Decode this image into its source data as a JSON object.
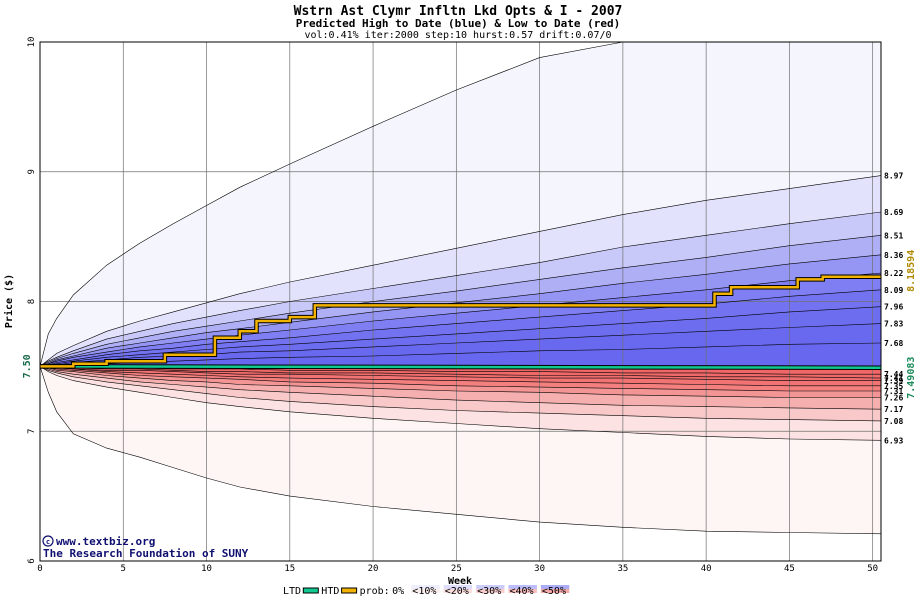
{
  "chart_data": {
    "type": "area",
    "title": "Wstrn Ast Clymr Infltn Lkd Opts & I - 2007",
    "subtitle": "Predicted High to Date (blue) &  Low to Date (red)",
    "params": "vol:0.41% iter:2000 step:10 hurst:0.57 drift:0.07/0",
    "xlabel": "Week",
    "ylabel": "Price ($)",
    "xlim": [
      0,
      50.5
    ],
    "ylim": [
      6,
      10
    ],
    "xticks": [
      0,
      5,
      10,
      15,
      20,
      25,
      30,
      35,
      40,
      45,
      50
    ],
    "yticks": [
      6,
      7,
      8,
      9,
      10
    ],
    "grid": true,
    "start_price": 7.5,
    "start_label": "7.50",
    "x": [
      0,
      0.5,
      1,
      2,
      4,
      6,
      8,
      10,
      12,
      15,
      20,
      25,
      30,
      35,
      40,
      45,
      50.5
    ],
    "high_bands": [
      {
        "name": "0%",
        "end_label": "",
        "values": [
          7.5,
          7.75,
          7.87,
          8.05,
          8.28,
          8.45,
          8.6,
          8.74,
          8.88,
          9.06,
          9.35,
          9.63,
          9.88,
          10.02,
          10.1,
          10.15,
          10.2
        ]
      },
      {
        "name": "10%",
        "end_label": "8.97",
        "values": [
          7.5,
          7.55,
          7.6,
          7.66,
          7.77,
          7.85,
          7.92,
          7.99,
          8.06,
          8.15,
          8.28,
          8.41,
          8.54,
          8.67,
          8.78,
          8.87,
          8.97
        ]
      },
      {
        "name": "20%",
        "end_label": "8.69",
        "values": [
          7.5,
          7.54,
          7.57,
          7.62,
          7.71,
          7.77,
          7.83,
          7.88,
          7.93,
          8.0,
          8.1,
          8.2,
          8.3,
          8.42,
          8.51,
          8.6,
          8.69
        ]
      },
      {
        "name": "30%",
        "end_label": "8.51",
        "values": [
          7.5,
          7.53,
          7.56,
          7.6,
          7.67,
          7.72,
          7.77,
          7.81,
          7.85,
          7.91,
          8.0,
          8.08,
          8.17,
          8.26,
          8.34,
          8.43,
          8.51
        ]
      },
      {
        "name": "40%",
        "end_label": "8.36",
        "values": [
          7.5,
          7.52,
          7.55,
          7.58,
          7.64,
          7.68,
          7.72,
          7.76,
          7.79,
          7.84,
          7.92,
          7.99,
          8.06,
          8.14,
          8.21,
          8.29,
          8.36
        ]
      },
      {
        "name": "50%",
        "end_label": "8.22",
        "values": [
          7.5,
          7.52,
          7.54,
          7.57,
          7.61,
          7.65,
          7.68,
          7.71,
          7.74,
          7.78,
          7.85,
          7.91,
          7.97,
          8.03,
          8.09,
          8.16,
          8.22
        ]
      },
      {
        "name": "60%",
        "end_label": "8.09",
        "values": [
          7.5,
          7.51,
          7.53,
          7.55,
          7.59,
          7.62,
          7.64,
          7.67,
          7.69,
          7.72,
          7.78,
          7.83,
          7.88,
          7.93,
          7.98,
          8.04,
          8.09
        ]
      },
      {
        "name": "70%",
        "end_label": "7.96",
        "values": [
          7.5,
          7.51,
          7.52,
          7.54,
          7.57,
          7.59,
          7.61,
          7.63,
          7.65,
          7.67,
          7.71,
          7.75,
          7.79,
          7.83,
          7.87,
          7.92,
          7.96
        ]
      },
      {
        "name": "80%",
        "end_label": "7.83",
        "values": [
          7.5,
          7.51,
          7.51,
          7.53,
          7.55,
          7.57,
          7.58,
          7.59,
          7.61,
          7.62,
          7.65,
          7.68,
          7.71,
          7.74,
          7.77,
          7.8,
          7.83
        ]
      },
      {
        "name": "90%",
        "end_label": "7.68",
        "values": [
          7.5,
          7.5,
          7.51,
          7.51,
          7.52,
          7.53,
          7.54,
          7.55,
          7.56,
          7.57,
          7.58,
          7.6,
          7.62,
          7.63,
          7.65,
          7.67,
          7.68
        ]
      }
    ],
    "low_bands": [
      {
        "name": "0%",
        "end_label": "",
        "values": [
          7.5,
          7.3,
          7.15,
          6.98,
          6.87,
          6.8,
          6.72,
          6.64,
          6.57,
          6.5,
          6.42,
          6.36,
          6.3,
          6.26,
          6.23,
          6.22,
          6.21
        ]
      },
      {
        "name": "10%",
        "end_label": "6.93",
        "values": [
          7.5,
          7.46,
          7.43,
          7.39,
          7.34,
          7.3,
          7.26,
          7.22,
          7.19,
          7.15,
          7.1,
          7.06,
          7.02,
          6.99,
          6.96,
          6.94,
          6.93
        ]
      },
      {
        "name": "20%",
        "end_label": "7.08",
        "values": [
          7.5,
          7.47,
          7.45,
          7.42,
          7.38,
          7.35,
          7.32,
          7.29,
          7.26,
          7.23,
          7.19,
          7.16,
          7.14,
          7.12,
          7.1,
          7.09,
          7.08
        ]
      },
      {
        "name": "30%",
        "end_label": "7.17",
        "values": [
          7.5,
          7.48,
          7.46,
          7.44,
          7.41,
          7.38,
          7.36,
          7.34,
          7.32,
          7.3,
          7.27,
          7.24,
          7.22,
          7.2,
          7.19,
          7.18,
          7.17
        ]
      },
      {
        "name": "40%",
        "end_label": "7.26",
        "values": [
          7.5,
          7.49,
          7.47,
          7.46,
          7.43,
          7.41,
          7.39,
          7.38,
          7.36,
          7.35,
          7.33,
          7.31,
          7.3,
          7.28,
          7.27,
          7.26,
          7.26
        ]
      },
      {
        "name": "50%",
        "end_label": "7.31",
        "values": [
          7.5,
          7.49,
          7.48,
          7.47,
          7.45,
          7.43,
          7.42,
          7.41,
          7.4,
          7.38,
          7.37,
          7.35,
          7.34,
          7.33,
          7.32,
          7.31,
          7.31
        ]
      },
      {
        "name": "60%",
        "end_label": "7.35",
        "values": [
          7.5,
          7.49,
          7.49,
          7.48,
          7.46,
          7.45,
          7.44,
          7.43,
          7.42,
          7.41,
          7.4,
          7.39,
          7.38,
          7.37,
          7.36,
          7.35,
          7.35
        ]
      },
      {
        "name": "70%",
        "end_label": "7.39",
        "values": [
          7.5,
          7.5,
          7.49,
          7.48,
          7.47,
          7.47,
          7.46,
          7.45,
          7.44,
          7.44,
          7.43,
          7.42,
          7.41,
          7.41,
          7.4,
          7.39,
          7.39
        ]
      },
      {
        "name": "80%",
        "end_label": "7.41",
        "values": [
          7.5,
          7.5,
          7.49,
          7.49,
          7.48,
          7.48,
          7.47,
          7.46,
          7.46,
          7.45,
          7.45,
          7.44,
          7.43,
          7.43,
          7.42,
          7.42,
          7.41
        ]
      },
      {
        "name": "90%",
        "end_label": "7.44",
        "values": [
          7.5,
          7.5,
          7.5,
          7.49,
          7.49,
          7.49,
          7.48,
          7.48,
          7.48,
          7.47,
          7.47,
          7.46,
          7.46,
          7.45,
          7.45,
          7.44,
          7.44
        ]
      }
    ],
    "htd_path": {
      "name": "HTD",
      "x": [
        0,
        2,
        2,
        4,
        4,
        7.5,
        7.5,
        10.5,
        10.5,
        12,
        12,
        13,
        13,
        15,
        15,
        16.5,
        16.5,
        40.5,
        40.5,
        41.5,
        41.5,
        45.5,
        45.5,
        47,
        47,
        50.5
      ],
      "values": [
        7.5,
        7.5,
        7.52,
        7.52,
        7.54,
        7.54,
        7.59,
        7.59,
        7.72,
        7.72,
        7.77,
        7.77,
        7.85,
        7.85,
        7.88,
        7.88,
        7.97,
        7.97,
        8.06,
        8.06,
        8.11,
        8.11,
        8.17,
        8.17,
        8.19,
        8.19
      ],
      "end_label": "8.18594",
      "color": "#f2b200"
    },
    "ltd_path": {
      "name": "LTD",
      "x": [
        0,
        50.5
      ],
      "values": [
        7.5,
        7.49
      ],
      "end_label": "7.49083",
      "color": "#10c890"
    },
    "colors": {
      "high_band": "#5a5af0",
      "low_band": "#f05a5a",
      "htd": "#f2b200",
      "ltd": "#10c890",
      "grid": "#707070"
    },
    "legend": {
      "position": "bottom",
      "ltd_label": "LTD",
      "htd_label": "HTD",
      "prob_label": "prob:",
      "items": [
        "0%",
        "<10%",
        "<20%",
        "<30%",
        "<40%",
        "<50%"
      ],
      "swatch_alpha": [
        0,
        0.1,
        0.2,
        0.3,
        0.4,
        0.5
      ]
    },
    "credits": [
      "www.textbiz.org",
      "The Research Foundation of SUNY"
    ]
  }
}
